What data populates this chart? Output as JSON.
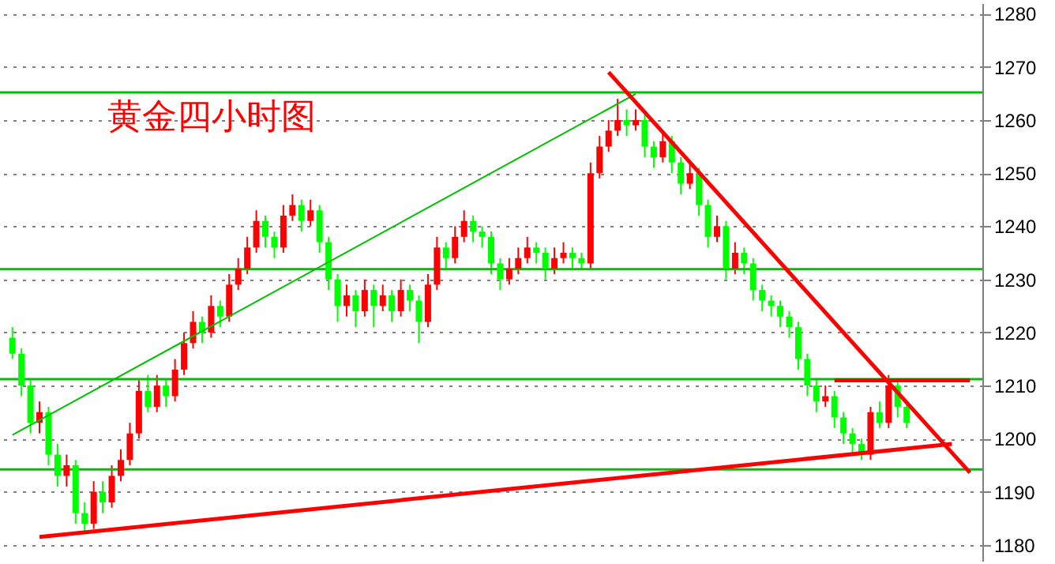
{
  "chart_data": {
    "type": "candlestick",
    "title": "黄金四小时图",
    "categories": [
      null,
      null,
      null,
      null,
      null,
      null,
      null,
      null,
      null,
      null,
      null,
      null,
      null,
      null,
      null,
      null,
      null,
      null,
      null,
      null,
      null,
      null,
      null,
      null,
      null,
      null,
      null,
      null,
      null,
      null,
      null,
      null,
      null,
      null,
      null,
      null,
      null,
      null,
      null,
      null,
      null,
      null,
      null,
      null,
      null,
      null,
      null,
      null,
      null,
      null,
      null,
      null,
      null,
      null,
      null,
      null,
      null,
      null,
      null,
      null,
      null,
      null,
      null,
      null,
      null,
      null,
      null,
      null,
      null,
      null,
      null,
      null,
      null,
      null,
      null,
      null,
      null,
      null,
      null,
      null,
      null,
      null,
      null,
      null,
      null,
      null,
      null,
      null,
      null,
      null,
      null,
      null,
      null,
      null,
      null,
      null,
      null,
      null,
      null,
      null,
      null,
      null,
      null,
      null,
      null,
      null,
      null
    ],
    "ohlc": [
      [
        1219,
        1221,
        1215,
        1216
      ],
      [
        1216,
        1217,
        1208,
        1210
      ],
      [
        1210,
        1211,
        1201,
        1203
      ],
      [
        1203,
        1207,
        1201,
        1205
      ],
      [
        1205,
        1206,
        1195,
        1197
      ],
      [
        1197,
        1199,
        1191,
        1193
      ],
      [
        1193,
        1197,
        1191,
        1195
      ],
      [
        1195,
        1196,
        1184,
        1186
      ],
      [
        1186,
        1188,
        1182,
        1184
      ],
      [
        1184,
        1192,
        1183,
        1190
      ],
      [
        1190,
        1192,
        1186,
        1188
      ],
      [
        1188,
        1195,
        1187,
        1193
      ],
      [
        1193,
        1198,
        1192,
        1196
      ],
      [
        1196,
        1203,
        1195,
        1201
      ],
      [
        1201,
        1211,
        1200,
        1209
      ],
      [
        1209,
        1212,
        1205,
        1206
      ],
      [
        1206,
        1212,
        1205,
        1210
      ],
      [
        1210,
        1211,
        1206,
        1208
      ],
      [
        1208,
        1215,
        1207,
        1213
      ],
      [
        1213,
        1220,
        1212,
        1218
      ],
      [
        1218,
        1224,
        1217,
        1222
      ],
      [
        1222,
        1223,
        1218,
        1220
      ],
      [
        1220,
        1227,
        1219,
        1225
      ],
      [
        1225,
        1226,
        1221,
        1223
      ],
      [
        1223,
        1231,
        1222,
        1229
      ],
      [
        1229,
        1234,
        1228,
        1232
      ],
      [
        1232,
        1238,
        1231,
        1236
      ],
      [
        1236,
        1243,
        1235,
        1241
      ],
      [
        1241,
        1242,
        1236,
        1238
      ],
      [
        1238,
        1239,
        1234,
        1236
      ],
      [
        1236,
        1244,
        1235,
        1242
      ],
      [
        1242,
        1246,
        1241,
        1244
      ],
      [
        1244,
        1245,
        1239,
        1241
      ],
      [
        1241,
        1245,
        1240,
        1243
      ],
      [
        1243,
        1244,
        1235,
        1237
      ],
      [
        1237,
        1238,
        1228,
        1230
      ],
      [
        1230,
        1231,
        1222,
        1225
      ],
      [
        1225,
        1229,
        1223,
        1227
      ],
      [
        1227,
        1228,
        1221,
        1224
      ],
      [
        1224,
        1230,
        1223,
        1228
      ],
      [
        1228,
        1229,
        1221,
        1225
      ],
      [
        1225,
        1229,
        1224,
        1227
      ],
      [
        1227,
        1228,
        1222,
        1224
      ],
      [
        1224,
        1230,
        1223,
        1228
      ],
      [
        1228,
        1229,
        1224,
        1226
      ],
      [
        1226,
        1227,
        1218,
        1222
      ],
      [
        1222,
        1231,
        1221,
        1229
      ],
      [
        1229,
        1238,
        1228,
        1236
      ],
      [
        1236,
        1237,
        1232,
        1234
      ],
      [
        1234,
        1240,
        1233,
        1238
      ],
      [
        1238,
        1243,
        1237,
        1241
      ],
      [
        1241,
        1242,
        1237,
        1239
      ],
      [
        1239,
        1240,
        1236,
        1238
      ],
      [
        1238,
        1239,
        1231,
        1233
      ],
      [
        1233,
        1234,
        1228,
        1230
      ],
      [
        1230,
        1234,
        1229,
        1232
      ],
      [
        1232,
        1236,
        1231,
        1234
      ],
      [
        1234,
        1238,
        1233,
        1236
      ],
      [
        1236,
        1237,
        1233,
        1235
      ],
      [
        1235,
        1236,
        1230,
        1232
      ],
      [
        1232,
        1236,
        1231,
        1234
      ],
      [
        1234,
        1237,
        1233,
        1235
      ],
      [
        1235,
        1236,
        1232,
        1234
      ],
      [
        1234,
        1235,
        1232,
        1233
      ],
      [
        1233,
        1252,
        1232,
        1250
      ],
      [
        1250,
        1257,
        1249,
        1255
      ],
      [
        1255,
        1260,
        1254,
        1258
      ],
      [
        1258,
        1264,
        1257,
        1260
      ],
      [
        1260,
        1262,
        1257,
        1259
      ],
      [
        1259,
        1262,
        1258,
        1260
      ],
      [
        1260,
        1261,
        1253,
        1255
      ],
      [
        1255,
        1256,
        1251,
        1253
      ],
      [
        1253,
        1258,
        1252,
        1256
      ],
      [
        1256,
        1257,
        1250,
        1252
      ],
      [
        1252,
        1253,
        1246,
        1248
      ],
      [
        1248,
        1252,
        1247,
        1250
      ],
      [
        1250,
        1251,
        1242,
        1244
      ],
      [
        1244,
        1245,
        1236,
        1238
      ],
      [
        1238,
        1242,
        1237,
        1240
      ],
      [
        1240,
        1241,
        1230,
        1232
      ],
      [
        1232,
        1237,
        1231,
        1235
      ],
      [
        1235,
        1236,
        1231,
        1233
      ],
      [
        1233,
        1234,
        1226,
        1228
      ],
      [
        1228,
        1229,
        1224,
        1226
      ],
      [
        1226,
        1227,
        1223,
        1225
      ],
      [
        1225,
        1226,
        1221,
        1223
      ],
      [
        1223,
        1224,
        1219,
        1221
      ],
      [
        1221,
        1222,
        1213,
        1215
      ],
      [
        1215,
        1216,
        1208,
        1210
      ],
      [
        1210,
        1211,
        1205,
        1207
      ],
      [
        1207,
        1210,
        1206,
        1208
      ],
      [
        1208,
        1209,
        1202,
        1204
      ],
      [
        1204,
        1205,
        1199,
        1201
      ],
      [
        1201,
        1202,
        1197,
        1199
      ],
      [
        1199,
        1200,
        1196,
        1197
      ],
      [
        1197,
        1206,
        1196,
        1205
      ],
      [
        1205,
        1207,
        1202,
        1203
      ],
      [
        1203,
        1212,
        1202,
        1210
      ],
      [
        1210,
        1211,
        1204,
        1206
      ],
      [
        1206,
        1207,
        1202,
        1203
      ],
      null,
      null,
      null,
      null,
      null,
      null,
      null
    ],
    "colors": [
      "#00ff00",
      "#00ff00",
      "#00ff00",
      "#ff0000",
      "#00ff00",
      "#00ff00",
      "#ff0000",
      "#00ff00",
      "#00ff00",
      "#ff0000",
      "#00ff00",
      "#ff0000",
      "#ff0000",
      "#ff0000",
      "#ff0000",
      "#00ff00",
      "#ff0000",
      "#00ff00",
      "#ff0000",
      "#ff0000",
      "#ff0000",
      "#00ff00",
      "#ff0000",
      "#00ff00",
      "#ff0000",
      "#ff0000",
      "#ff0000",
      "#ff0000",
      "#00ff00",
      "#00ff00",
      "#ff0000",
      "#ff0000",
      "#00ff00",
      "#ff0000",
      "#00ff00",
      "#00ff00",
      "#00ff00",
      "#ff0000",
      "#00ff00",
      "#ff0000",
      "#00ff00",
      "#ff0000",
      "#00ff00",
      "#ff0000",
      "#00ff00",
      "#00ff00",
      "#ff0000",
      "#ff0000",
      "#00ff00",
      "#ff0000",
      "#ff0000",
      "#00ff00",
      "#00ff00",
      "#00ff00",
      "#00ff00",
      "#ff0000",
      "#ff0000",
      "#ff0000",
      "#00ff00",
      "#00ff00",
      "#ff0000",
      "#ff0000",
      "#00ff00",
      "#00ff00",
      "#ff0000",
      "#ff0000",
      "#ff0000",
      "#ff0000",
      "#00ff00",
      "#ff0000",
      "#00ff00",
      "#00ff00",
      "#ff0000",
      "#00ff00",
      "#00ff00",
      "#ff0000",
      "#00ff00",
      "#00ff00",
      "#ff0000",
      "#00ff00",
      "#ff0000",
      "#00ff00",
      "#00ff00",
      "#00ff00",
      "#00ff00",
      "#00ff00",
      "#00ff00",
      "#00ff00",
      "#00ff00",
      "#00ff00",
      "#ff0000",
      "#00ff00",
      "#00ff00",
      "#00ff00",
      "#00ff00",
      "#ff0000",
      "#00ff00",
      "#ff0000",
      "#00ff00",
      "#00ff00",
      null,
      null,
      null,
      null,
      null,
      null,
      null
    ],
    "series": [
      {
        "type": "line",
        "color": "#00c000",
        "values": [
          1200.7,
          null,
          null,
          null,
          null,
          null,
          null,
          null,
          null,
          null,
          null,
          null,
          null,
          null,
          null,
          null,
          null,
          null,
          null,
          null,
          null,
          null,
          null,
          null,
          null,
          null,
          null,
          null,
          null,
          null,
          null,
          null,
          null,
          null,
          null,
          null,
          null,
          null,
          null,
          null,
          null,
          null,
          null,
          null,
          null,
          null,
          null,
          null,
          null,
          null,
          null,
          null,
          null,
          null,
          null,
          null,
          null,
          null,
          null,
          null,
          null,
          null,
          null,
          null,
          null,
          null,
          null,
          null,
          null,
          1264.9,
          null,
          null,
          null,
          null,
          null,
          null,
          null,
          null,
          null,
          null,
          null,
          null,
          null,
          null,
          null,
          null,
          null,
          null,
          null,
          null,
          null,
          null,
          null,
          null,
          null,
          null,
          null,
          null,
          null,
          null,
          null,
          null,
          null,
          null,
          null,
          null,
          null
        ]
      },
      {
        "type": "line",
        "color": "#ff0000",
        "values": [
          null,
          null,
          null,
          1181.5,
          null,
          null,
          null,
          null,
          null,
          null,
          null,
          null,
          null,
          null,
          null,
          null,
          null,
          null,
          null,
          null,
          null,
          null,
          null,
          null,
          null,
          null,
          null,
          null,
          null,
          null,
          null,
          null,
          null,
          null,
          null,
          null,
          null,
          null,
          null,
          null,
          null,
          null,
          null,
          null,
          null,
          null,
          null,
          null,
          null,
          null,
          null,
          null,
          null,
          null,
          null,
          null,
          null,
          null,
          null,
          null,
          null,
          null,
          null,
          null,
          null,
          null,
          null,
          null,
          null,
          null,
          null,
          null,
          null,
          null,
          null,
          null,
          null,
          null,
          null,
          null,
          null,
          null,
          null,
          null,
          null,
          null,
          null,
          null,
          null,
          null,
          null,
          null,
          null,
          null,
          null,
          null,
          null,
          null,
          null,
          null,
          null,
          null,
          null,
          null,
          1199,
          null,
          null
        ]
      },
      {
        "type": "line",
        "color": "#ff0000",
        "values": [
          null,
          null,
          null,
          null,
          null,
          null,
          null,
          null,
          null,
          null,
          null,
          null,
          null,
          null,
          null,
          null,
          null,
          null,
          null,
          null,
          null,
          null,
          null,
          null,
          null,
          null,
          null,
          null,
          null,
          null,
          null,
          null,
          null,
          null,
          null,
          null,
          null,
          null,
          null,
          null,
          null,
          null,
          null,
          null,
          null,
          null,
          null,
          null,
          null,
          null,
          null,
          null,
          null,
          null,
          null,
          null,
          null,
          null,
          null,
          null,
          null,
          null,
          null,
          null,
          null,
          null,
          1269,
          null,
          null,
          null,
          null,
          null,
          null,
          null,
          null,
          null,
          null,
          null,
          null,
          null,
          null,
          null,
          null,
          null,
          null,
          null,
          null,
          null,
          null,
          null,
          null,
          null,
          null,
          null,
          null,
          null,
          null,
          null,
          null,
          null,
          null,
          null,
          null,
          null,
          null,
          null,
          1193.6
        ]
      },
      {
        "type": "line",
        "color": "#ff0000",
        "values": [
          null,
          null,
          null,
          null,
          null,
          null,
          null,
          null,
          null,
          null,
          null,
          null,
          null,
          null,
          null,
          null,
          null,
          null,
          null,
          null,
          null,
          null,
          null,
          null,
          null,
          null,
          null,
          null,
          null,
          null,
          null,
          null,
          null,
          null,
          null,
          null,
          null,
          null,
          null,
          null,
          null,
          null,
          null,
          null,
          null,
          null,
          null,
          null,
          null,
          null,
          null,
          null,
          null,
          null,
          null,
          null,
          null,
          null,
          null,
          null,
          null,
          null,
          null,
          null,
          null,
          null,
          null,
          null,
          null,
          null,
          null,
          null,
          null,
          null,
          null,
          null,
          null,
          null,
          null,
          null,
          null,
          null,
          null,
          null,
          null,
          null,
          null,
          null,
          null,
          null,
          null,
          1211,
          null,
          null,
          null,
          null,
          null,
          null,
          null,
          null,
          null,
          null,
          null,
          null,
          null,
          null,
          1211
        ]
      }
    ],
    "ref_lines": [
      {
        "axis": "y",
        "value": 1265.2,
        "color": "#00c000"
      },
      {
        "axis": "y",
        "value": 1231.9,
        "color": "#00c000"
      },
      {
        "axis": "y",
        "value": 1211.2,
        "color": "#00c000"
      },
      {
        "axis": "y",
        "value": 1194.2,
        "color": "#00c000"
      }
    ],
    "ylim": [
      1177,
      1282
    ],
    "yticks": [
      1180,
      1190,
      1200,
      1210,
      1220,
      1230,
      1240,
      1250,
      1260,
      1270,
      1280
    ],
    "tick_labels": "y",
    "grid": "y"
  }
}
